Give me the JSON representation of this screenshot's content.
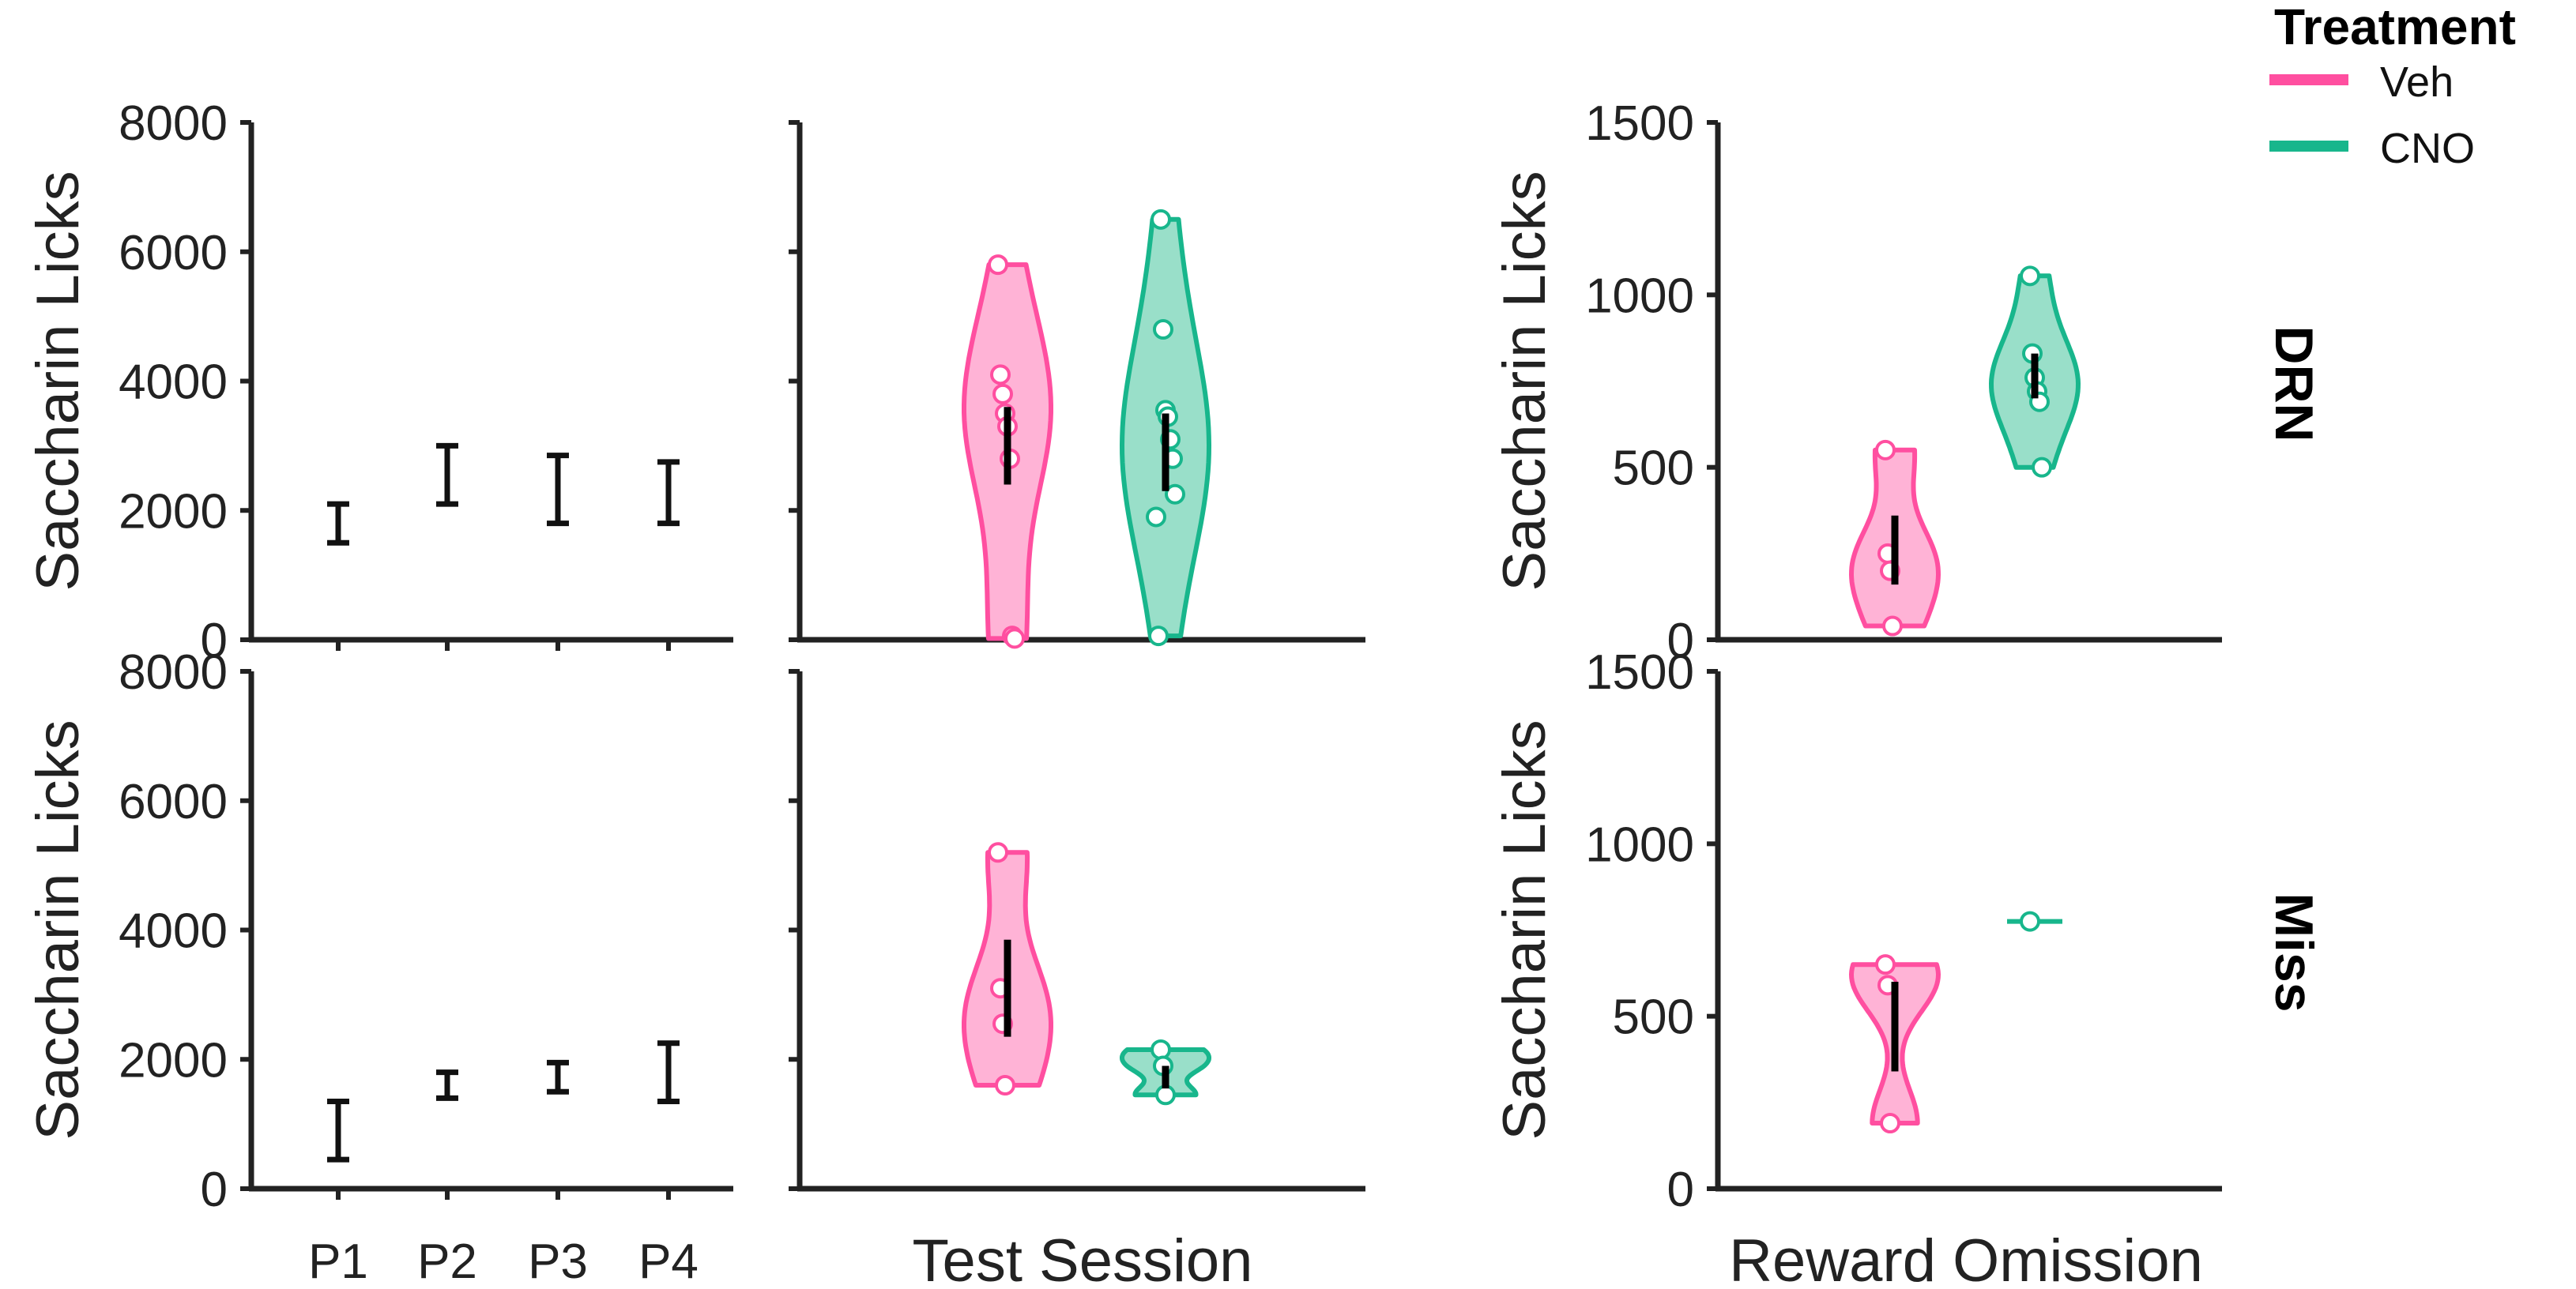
{
  "legend": {
    "title": "Treatment",
    "items": [
      {
        "label": "Veh",
        "color": "#ff4fa0"
      },
      {
        "label": "CNO",
        "color": "#18b68c"
      }
    ]
  },
  "rows": [
    "DRN",
    "Miss"
  ],
  "x_titles": {
    "panel1": "",
    "panel2": "Test Session",
    "panel3": "Reward Omission"
  },
  "y_title": "Saccharin Licks",
  "chart_data": [
    {
      "type": "errorbar",
      "panel": "sessions",
      "row": "DRN",
      "categories": [
        "P1",
        "P2",
        "P3",
        "P4"
      ],
      "ylabel": "Saccharin Licks",
      "ylim": [
        0,
        8000
      ],
      "yticks": [
        0,
        2000,
        4000,
        6000,
        8000
      ],
      "intervals": [
        [
          1500,
          2100
        ],
        [
          2100,
          3000
        ],
        [
          1800,
          2850
        ],
        [
          1800,
          2750
        ]
      ]
    },
    {
      "type": "violin",
      "panel": "test_session",
      "row": "DRN",
      "xlabel": "Test Session",
      "ylim": [
        0,
        8000
      ],
      "yticks": [
        0,
        2000,
        4000,
        6000,
        8000
      ],
      "series": [
        {
          "name": "Veh",
          "points": [
            5800,
            4100,
            3800,
            3500,
            3300,
            2800,
            60,
            20
          ],
          "range": [
            20,
            5800
          ],
          "interval": [
            2400,
            3600
          ]
        },
        {
          "name": "CNO",
          "points": [
            6500,
            4800,
            3550,
            3450,
            3100,
            2800,
            2250,
            1900,
            60
          ],
          "range": [
            60,
            6500
          ],
          "interval": [
            2300,
            3500
          ]
        }
      ]
    },
    {
      "type": "violin",
      "panel": "reward_omission",
      "row": "DRN",
      "xlabel": "Reward Omission",
      "ylabel": "Saccharin Licks",
      "ylim": [
        0,
        1500
      ],
      "yticks": [
        0,
        500,
        1000,
        1500
      ],
      "series": [
        {
          "name": "Veh",
          "points": [
            550,
            250,
            200,
            40
          ],
          "range": [
            40,
            550
          ],
          "interval": [
            160,
            360
          ]
        },
        {
          "name": "CNO",
          "points": [
            1055,
            830,
            760,
            720,
            690,
            500
          ],
          "range": [
            500,
            1055
          ],
          "interval": [
            700,
            830
          ]
        }
      ]
    },
    {
      "type": "errorbar",
      "panel": "sessions",
      "row": "Miss",
      "categories": [
        "P1",
        "P2",
        "P3",
        "P4"
      ],
      "ylabel": "Saccharin Licks",
      "ylim": [
        0,
        8000
      ],
      "yticks": [
        0,
        2000,
        4000,
        6000,
        8000
      ],
      "intervals": [
        [
          450,
          1350
        ],
        [
          1400,
          1800
        ],
        [
          1500,
          1950
        ],
        [
          1350,
          2250
        ]
      ]
    },
    {
      "type": "violin",
      "panel": "test_session",
      "row": "Miss",
      "xlabel": "Test Session",
      "ylim": [
        0,
        8000
      ],
      "yticks": [
        0,
        2000,
        4000,
        6000,
        8000
      ],
      "series": [
        {
          "name": "Veh",
          "points": [
            5200,
            3100,
            2550,
            1600
          ],
          "range": [
            1600,
            5200
          ],
          "interval": [
            2350,
            3850
          ]
        },
        {
          "name": "CNO",
          "points": [
            2150,
            1900,
            1450
          ],
          "range": [
            1450,
            2150
          ],
          "interval": [
            1550,
            1900
          ]
        }
      ]
    },
    {
      "type": "violin",
      "panel": "reward_omission",
      "row": "Miss",
      "xlabel": "Reward Omission",
      "ylabel": "Saccharin Licks",
      "ylim": [
        0,
        1500
      ],
      "yticks": [
        0,
        500,
        1000,
        1500
      ],
      "series": [
        {
          "name": "Veh",
          "points": [
            650,
            590,
            190
          ],
          "range": [
            190,
            650
          ],
          "interval": [
            340,
            600
          ]
        },
        {
          "name": "CNO",
          "points": [
            775
          ],
          "range": [
            775,
            775
          ],
          "interval": [
            775,
            775
          ]
        }
      ]
    }
  ]
}
